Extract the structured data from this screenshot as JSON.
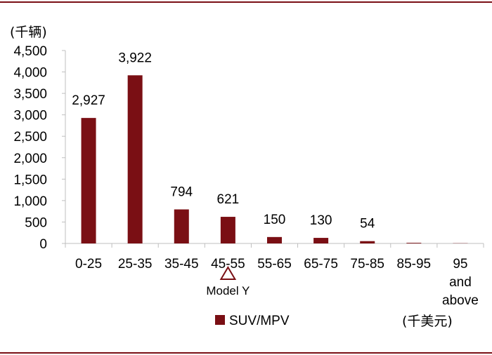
{
  "chart_data": {
    "type": "bar",
    "categories": [
      "0-25",
      "25-35",
      "35-45",
      "45-55",
      "55-65",
      "65-75",
      "75-85",
      "85-95",
      "95 and above"
    ],
    "category_lines": [
      [
        "0-25"
      ],
      [
        "25-35"
      ],
      [
        "35-45"
      ],
      [
        "45-55"
      ],
      [
        "55-65"
      ],
      [
        "65-75"
      ],
      [
        "75-85"
      ],
      [
        "85-95"
      ],
      [
        "95",
        "and",
        "above"
      ]
    ],
    "series": [
      {
        "name": "SUV/MPV",
        "values": [
          2927,
          3922,
          794,
          621,
          150,
          130,
          54,
          15,
          5
        ],
        "data_labels": [
          "2,927",
          "3,922",
          "794",
          "621",
          "150",
          "130",
          "54",
          "",
          ""
        ],
        "color": "#7a0f14"
      }
    ],
    "ylim": [
      0,
      4500
    ],
    "yticks": [
      0,
      500,
      1000,
      1500,
      2000,
      2500,
      3000,
      3500,
      4000,
      4500
    ],
    "ytick_labels": [
      "0",
      "500",
      "1,000",
      "1,500",
      "2,000",
      "2,500",
      "3,000",
      "3,500",
      "4,000",
      "4,500"
    ],
    "y_unit_label": "(千辆)",
    "x_unit_label": "(千美元)",
    "annotation": {
      "category": "45-55",
      "text": "Model Y",
      "marker": "triangle-up-outline",
      "color": "#7a0f14"
    },
    "legend": {
      "position": "bottom-center"
    },
    "grid": false,
    "frame_color": "#7a0f14"
  }
}
